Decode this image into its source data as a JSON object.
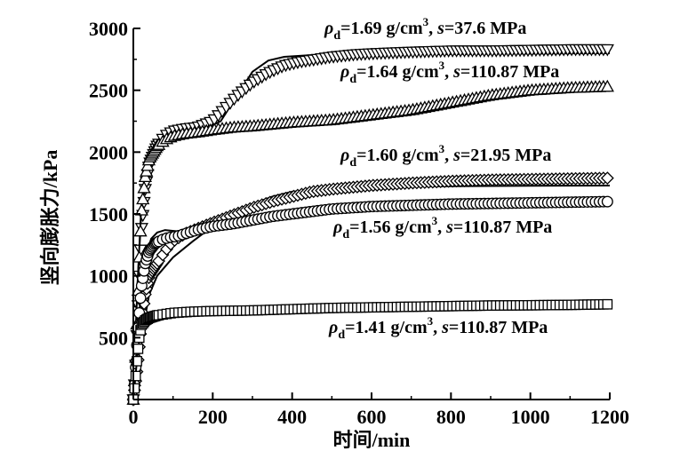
{
  "chart_data": {
    "type": "scatter",
    "title": "",
    "xlabel": "时间/min",
    "ylabel": "竖向膨胀力/kPa",
    "xlim": [
      0,
      1200
    ],
    "ylim": [
      0,
      3000
    ],
    "xticks": [
      0,
      200,
      400,
      600,
      800,
      1000,
      1200
    ],
    "yticks": [
      500,
      1000,
      1500,
      2000,
      2500,
      3000
    ],
    "grid": false,
    "series": [
      {
        "name": "ρd=1.69 g/cm3, s=37.6 MPa",
        "marker": "triangle-down",
        "points": [
          [
            0,
            0
          ],
          [
            5,
            200
          ],
          [
            10,
            600
          ],
          [
            15,
            1000
          ],
          [
            20,
            1350
          ],
          [
            30,
            1700
          ],
          [
            40,
            1900
          ],
          [
            60,
            2050
          ],
          [
            80,
            2130
          ],
          [
            100,
            2170
          ],
          [
            130,
            2190
          ],
          [
            160,
            2200
          ],
          [
            200,
            2250
          ],
          [
            230,
            2350
          ],
          [
            260,
            2450
          ],
          [
            300,
            2560
          ],
          [
            340,
            2640
          ],
          [
            380,
            2700
          ],
          [
            420,
            2730
          ],
          [
            460,
            2750
          ],
          [
            500,
            2770
          ],
          [
            560,
            2790
          ],
          [
            620,
            2800
          ],
          [
            700,
            2810
          ],
          [
            800,
            2820
          ],
          [
            900,
            2820
          ],
          [
            1000,
            2825
          ],
          [
            1100,
            2830
          ],
          [
            1200,
            2830
          ]
        ],
        "fit": [
          [
            0,
            0
          ],
          [
            10,
            900
          ],
          [
            20,
            1500
          ],
          [
            30,
            1800
          ],
          [
            50,
            2000
          ],
          [
            80,
            2100
          ],
          [
            120,
            2140
          ],
          [
            170,
            2170
          ],
          [
            220,
            2250
          ],
          [
            260,
            2450
          ],
          [
            300,
            2650
          ],
          [
            340,
            2740
          ],
          [
            380,
            2770
          ],
          [
            450,
            2785
          ],
          [
            600,
            2790
          ],
          [
            900,
            2795
          ],
          [
            1200,
            2800
          ]
        ]
      },
      {
        "name": "ρd=1.64 g/cm3, s=110.87 MPa",
        "marker": "triangle-up",
        "points": [
          [
            0,
            0
          ],
          [
            5,
            250
          ],
          [
            10,
            700
          ],
          [
            15,
            1150
          ],
          [
            20,
            1500
          ],
          [
            30,
            1800
          ],
          [
            40,
            1950
          ],
          [
            60,
            2050
          ],
          [
            80,
            2100
          ],
          [
            100,
            2130
          ],
          [
            130,
            2150
          ],
          [
            160,
            2160
          ],
          [
            200,
            2180
          ],
          [
            250,
            2200
          ],
          [
            300,
            2210
          ],
          [
            400,
            2240
          ],
          [
            500,
            2260
          ],
          [
            600,
            2300
          ],
          [
            700,
            2340
          ],
          [
            800,
            2400
          ],
          [
            900,
            2460
          ],
          [
            1000,
            2500
          ],
          [
            1100,
            2520
          ],
          [
            1200,
            2530
          ]
        ],
        "fit": [
          [
            0,
            0
          ],
          [
            10,
            900
          ],
          [
            20,
            1550
          ],
          [
            30,
            1850
          ],
          [
            50,
            2020
          ],
          [
            80,
            2100
          ],
          [
            120,
            2150
          ],
          [
            200,
            2180
          ],
          [
            300,
            2200
          ],
          [
            400,
            2210
          ],
          [
            500,
            2240
          ],
          [
            600,
            2300
          ],
          [
            700,
            2360
          ],
          [
            800,
            2420
          ],
          [
            900,
            2470
          ],
          [
            950,
            2490
          ]
        ]
      },
      {
        "name": "ρd=1.60 g/cm3, s=21.95 MPa",
        "marker": "diamond",
        "points": [
          [
            0,
            0
          ],
          [
            10,
            250
          ],
          [
            20,
            600
          ],
          [
            30,
            850
          ],
          [
            40,
            1000
          ],
          [
            60,
            1100
          ],
          [
            80,
            1200
          ],
          [
            100,
            1280
          ],
          [
            130,
            1340
          ],
          [
            160,
            1380
          ],
          [
            200,
            1430
          ],
          [
            250,
            1490
          ],
          [
            300,
            1550
          ],
          [
            350,
            1600
          ],
          [
            400,
            1640
          ],
          [
            450,
            1680
          ],
          [
            500,
            1700
          ],
          [
            600,
            1730
          ],
          [
            700,
            1750
          ],
          [
            800,
            1765
          ],
          [
            900,
            1775
          ],
          [
            1000,
            1780
          ],
          [
            1100,
            1785
          ],
          [
            1200,
            1790
          ]
        ],
        "fit": [
          [
            0,
            0
          ],
          [
            20,
            500
          ],
          [
            40,
            850
          ],
          [
            60,
            1000
          ],
          [
            100,
            1150
          ],
          [
            150,
            1280
          ],
          [
            200,
            1400
          ],
          [
            250,
            1500
          ],
          [
            300,
            1580
          ],
          [
            350,
            1640
          ],
          [
            400,
            1680
          ],
          [
            500,
            1710
          ],
          [
            600,
            1720
          ],
          [
            800,
            1725
          ],
          [
            1000,
            1728
          ],
          [
            1200,
            1730
          ]
        ]
      },
      {
        "name": "ρd=1.56 g/cm3, s=110.87 MPa",
        "marker": "circle",
        "points": [
          [
            0,
            0
          ],
          [
            5,
            200
          ],
          [
            10,
            500
          ],
          [
            20,
            900
          ],
          [
            30,
            1100
          ],
          [
            40,
            1200
          ],
          [
            55,
            1260
          ],
          [
            70,
            1290
          ],
          [
            90,
            1310
          ],
          [
            110,
            1320
          ],
          [
            130,
            1340
          ],
          [
            160,
            1370
          ],
          [
            200,
            1400
          ],
          [
            250,
            1420
          ],
          [
            300,
            1450
          ],
          [
            350,
            1480
          ],
          [
            400,
            1500
          ],
          [
            450,
            1520
          ],
          [
            500,
            1540
          ],
          [
            600,
            1560
          ],
          [
            700,
            1570
          ],
          [
            800,
            1580
          ],
          [
            900,
            1585
          ],
          [
            1000,
            1590
          ],
          [
            1100,
            1595
          ],
          [
            1200,
            1600
          ]
        ],
        "fit": [
          [
            0,
            0
          ],
          [
            10,
            500
          ],
          [
            20,
            900
          ],
          [
            30,
            1150
          ],
          [
            45,
            1300
          ],
          [
            60,
            1350
          ],
          [
            80,
            1370
          ],
          [
            110,
            1360
          ],
          [
            140,
            1360
          ],
          [
            180,
            1390
          ],
          [
            230,
            1430
          ],
          [
            300,
            1470
          ],
          [
            400,
            1510
          ],
          [
            500,
            1540
          ],
          [
            600,
            1555
          ],
          [
            800,
            1565
          ],
          [
            1000,
            1570
          ],
          [
            1200,
            1575
          ]
        ]
      },
      {
        "name": "ρd=1.41 g/cm3, s=110.87 MPa",
        "marker": "square",
        "points": [
          [
            0,
            0
          ],
          [
            5,
            150
          ],
          [
            10,
            350
          ],
          [
            15,
            500
          ],
          [
            20,
            600
          ],
          [
            30,
            640
          ],
          [
            40,
            660
          ],
          [
            60,
            680
          ],
          [
            80,
            690
          ],
          [
            100,
            700
          ],
          [
            150,
            710
          ],
          [
            200,
            715
          ],
          [
            300,
            720
          ],
          [
            400,
            730
          ],
          [
            500,
            740
          ],
          [
            600,
            745
          ],
          [
            700,
            750
          ],
          [
            800,
            755
          ],
          [
            900,
            760
          ],
          [
            1000,
            762
          ],
          [
            1100,
            765
          ],
          [
            1200,
            770
          ]
        ],
        "fit": [
          [
            0,
            0
          ],
          [
            10,
            350
          ],
          [
            20,
            600
          ],
          [
            30,
            650
          ],
          [
            50,
            690
          ],
          [
            80,
            705
          ],
          [
            120,
            715
          ],
          [
            200,
            725
          ],
          [
            400,
            735
          ],
          [
            600,
            740
          ],
          [
            900,
            742
          ],
          [
            1200,
            745
          ]
        ]
      }
    ]
  },
  "labels": [
    {
      "rho": "ρ",
      "sub": "d",
      "mid": "=1.69 g/cm",
      "sup": "3",
      "comma": ", ",
      "s": "s",
      "tail": "=37.6 MPa"
    },
    {
      "rho": "ρ",
      "sub": "d",
      "mid": "=1.64 g/cm",
      "sup": "3",
      "comma": ", ",
      "s": "s",
      "tail": "=110.87 MPa"
    },
    {
      "rho": "ρ",
      "sub": "d",
      "mid": "=1.60 g/cm",
      "sup": "3",
      "comma": ", ",
      "s": "s",
      "tail": "=21.95 MPa"
    },
    {
      "rho": "ρ",
      "sub": "d",
      "mid": "=1.56 g/cm",
      "sup": "3",
      "comma": ", ",
      "s": "s",
      "tail": "=110.87 MPa"
    },
    {
      "rho": "ρ",
      "sub": "d",
      "mid": "=1.41 g/cm",
      "sup": "3",
      "comma": ", ",
      "s": "s",
      "tail": "=110.87 MPa"
    }
  ]
}
